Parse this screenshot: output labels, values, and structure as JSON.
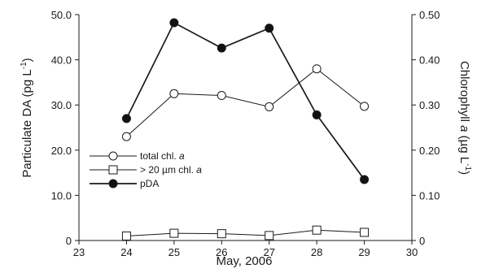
{
  "chart_data": {
    "type": "line",
    "xlabel": "May, 2006",
    "xlim": [
      23,
      30
    ],
    "x_ticks": [
      23,
      24,
      25,
      26,
      27,
      28,
      29,
      30
    ],
    "left_axis": {
      "label_main": "Particulate DA (pg L",
      "label_sup": "-1",
      "label_close": ")",
      "ylim": [
        0,
        50
      ],
      "ticks": [
        {
          "value": 0,
          "label": "0"
        },
        {
          "value": 10,
          "label": "10.0"
        },
        {
          "value": 20,
          "label": "20.0"
        },
        {
          "value": 30,
          "label": "30.0"
        },
        {
          "value": 40,
          "label": "40.0"
        },
        {
          "value": 50,
          "label": "50.0"
        }
      ]
    },
    "right_axis": {
      "label_main": "Chlorophyll ",
      "label_italic": "a",
      "label_rest": " (µg L",
      "label_sup": "-1",
      "label_close": ")",
      "ylim": [
        0,
        0.5
      ],
      "ticks": [
        {
          "value": 0,
          "label": "0"
        },
        {
          "value": 0.1,
          "label": "0.10"
        },
        {
          "value": 0.2,
          "label": "0.20"
        },
        {
          "value": 0.3,
          "label": "0.30"
        },
        {
          "value": 0.4,
          "label": "0.40"
        },
        {
          "value": 0.5,
          "label": "0.50"
        }
      ]
    },
    "series": [
      {
        "name": "total chl. a",
        "legend_text": "total chl. ",
        "legend_italic": "a",
        "axis": "right",
        "marker": "open-circle",
        "line_width": 1,
        "x": [
          24,
          25,
          26,
          27,
          28,
          29
        ],
        "values": [
          0.23,
          0.325,
          0.321,
          0.296,
          0.38,
          0.297
        ]
      },
      {
        "name": "> 20 µm chl. a",
        "legend_text": "> 20 µm chl. ",
        "legend_italic": "a",
        "axis": "right",
        "marker": "open-square",
        "line_width": 1,
        "x": [
          24,
          25,
          26,
          27,
          28,
          29
        ],
        "values": [
          0.01,
          0.016,
          0.015,
          0.011,
          0.023,
          0.018
        ]
      },
      {
        "name": "pDA",
        "legend_text": "pDA",
        "legend_italic": "",
        "axis": "left",
        "marker": "filled-circle",
        "line_width": 1.7,
        "x": [
          24,
          25,
          26,
          27,
          28,
          29
        ],
        "values": [
          27.0,
          48.2,
          42.6,
          47.0,
          27.8,
          13.5
        ]
      }
    ],
    "grid": false,
    "legend_position": "lower-left"
  },
  "colors": {
    "axis": "#1a1a1a",
    "line": "#1a1a1a",
    "marker_fill_open": "#ffffff",
    "marker_fill_filled": "#111111"
  }
}
